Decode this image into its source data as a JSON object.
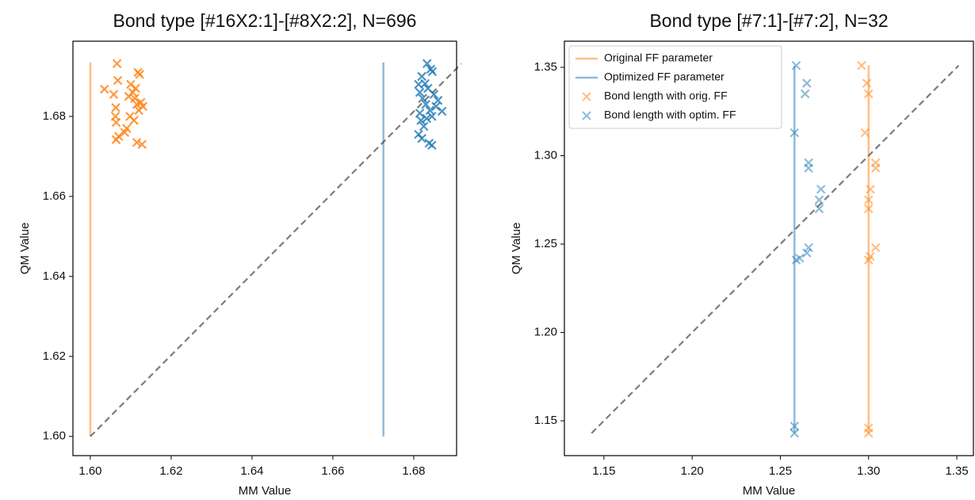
{
  "chart_data": [
    {
      "type": "scatter",
      "title": "Bond type [#16X2:1]-[#8X2:2], N=696",
      "x_label": "MM Value",
      "y_label": "QM Value",
      "xlim": [
        1.5957,
        1.6906
      ],
      "ylim": [
        1.5952,
        1.6988
      ],
      "xticks": [
        {
          "value": 1.6,
          "label": "1.60"
        },
        1.62,
        1.64,
        1.66,
        1.68
      ],
      "yticks": [
        {
          "value": 1.6,
          "label": "1.60"
        },
        1.62,
        1.64,
        1.66,
        1.68
      ],
      "series": [
        {
          "kind": "line",
          "color": "#ff7f0e",
          "alpha": 0.5,
          "x": [
            1.6,
            1.6
          ],
          "values": [
            1.6,
            1.6935
          ]
        },
        {
          "kind": "line",
          "color": "#1f77b4",
          "alpha": 0.5,
          "x": [
            1.6725,
            1.6725
          ],
          "values": [
            1.6,
            1.6935
          ]
        },
        {
          "kind": "scatter",
          "color": "#ff7f0e",
          "alpha": 0.8,
          "x": [
            1.6066,
            1.6068,
            1.6035,
            1.6058,
            1.6063,
            1.6062,
            1.6064,
            1.61,
            1.6105,
            1.611,
            1.6115,
            1.612,
            1.6098,
            1.6108,
            1.6125,
            1.613,
            1.6118,
            1.6122,
            1.609,
            1.6085,
            1.607,
            1.6064,
            1.6115,
            1.6128,
            1.6112,
            1.6095
          ],
          "values": [
            1.6932,
            1.689,
            1.6868,
            1.6855,
            1.6822,
            1.68,
            1.6785,
            1.688,
            1.686,
            1.6845,
            1.683,
            1.6815,
            1.68,
            1.679,
            1.6835,
            1.6825,
            1.691,
            1.6905,
            1.677,
            1.676,
            1.675,
            1.6742,
            1.6735,
            1.673,
            1.687,
            1.685
          ]
        },
        {
          "kind": "scatter",
          "color": "#1f77b4",
          "alpha": 0.8,
          "x": [
            1.6833,
            1.682,
            1.6812,
            1.6815,
            1.6822,
            1.683,
            1.684,
            1.6845,
            1.6818,
            1.6825,
            1.6835,
            1.685,
            1.686,
            1.687,
            1.6842,
            1.6846,
            1.6812,
            1.682,
            1.6838,
            1.6845,
            1.6828,
            1.6855,
            1.6815,
            1.6832
          ],
          "values": [
            1.6932,
            1.69,
            1.688,
            1.686,
            1.6845,
            1.683,
            1.6815,
            1.68,
            1.679,
            1.6775,
            1.687,
            1.6855,
            1.684,
            1.6813,
            1.6918,
            1.6912,
            1.6755,
            1.6745,
            1.6733,
            1.6728,
            1.6882,
            1.6825,
            1.6808,
            1.6795
          ]
        },
        {
          "kind": "line",
          "dashed": true,
          "color": "#444444",
          "alpha": 0.7,
          "x": [
            1.6,
            1.6918
          ],
          "values": [
            1.6,
            1.6932
          ]
        }
      ]
    },
    {
      "type": "scatter",
      "title": "Bond type [#7:1]-[#7:2], N=32",
      "x_label": "MM Value",
      "y_label": "QM Value",
      "xlim": [
        1.1276,
        1.3594
      ],
      "ylim": [
        1.1303,
        1.3648
      ],
      "xticks": [
        1.15,
        {
          "value": 1.2,
          "label": "1.20"
        },
        1.25,
        {
          "value": 1.3,
          "label": "1.30"
        },
        1.35
      ],
      "yticks": [
        1.15,
        {
          "value": 1.2,
          "label": "1.20"
        },
        1.25,
        {
          "value": 1.3,
          "label": "1.30"
        },
        1.35
      ],
      "legend": "upper left",
      "series": [
        {
          "kind": "line",
          "name": "Original FF parameter",
          "color": "#ff7f0e",
          "alpha": 0.5,
          "x": [
            1.3,
            1.3
          ],
          "values": [
            1.143,
            1.351
          ]
        },
        {
          "kind": "line",
          "name": "Optimized FF parameter",
          "color": "#1f77b4",
          "alpha": 0.5,
          "x": [
            1.258,
            1.258
          ],
          "values": [
            1.143,
            1.351
          ]
        },
        {
          "kind": "scatter",
          "name": "Bond length with orig. FF",
          "color": "#ff7f0e",
          "alpha": 0.5,
          "x": [
            1.296,
            1.299,
            1.3,
            1.298,
            1.304,
            1.304,
            1.301,
            1.3,
            1.3,
            1.304,
            1.301,
            1.3,
            1.3,
            1.3
          ],
          "values": [
            1.351,
            1.341,
            1.335,
            1.313,
            1.296,
            1.293,
            1.281,
            1.275,
            1.27,
            1.248,
            1.243,
            1.241,
            1.146,
            1.143
          ]
        },
        {
          "kind": "scatter",
          "name": "Bond length with optim. FF",
          "color": "#1f77b4",
          "alpha": 0.5,
          "x": [
            1.259,
            1.265,
            1.264,
            1.258,
            1.266,
            1.266,
            1.273,
            1.272,
            1.272,
            1.266,
            1.265,
            1.261,
            1.259,
            1.258,
            1.258
          ],
          "values": [
            1.351,
            1.341,
            1.335,
            1.313,
            1.296,
            1.293,
            1.281,
            1.275,
            1.27,
            1.248,
            1.245,
            1.242,
            1.241,
            1.147,
            1.143
          ]
        },
        {
          "kind": "line",
          "dashed": true,
          "color": "#444444",
          "alpha": 0.7,
          "x": [
            1.143,
            1.351
          ],
          "values": [
            1.143,
            1.351
          ]
        }
      ]
    }
  ]
}
